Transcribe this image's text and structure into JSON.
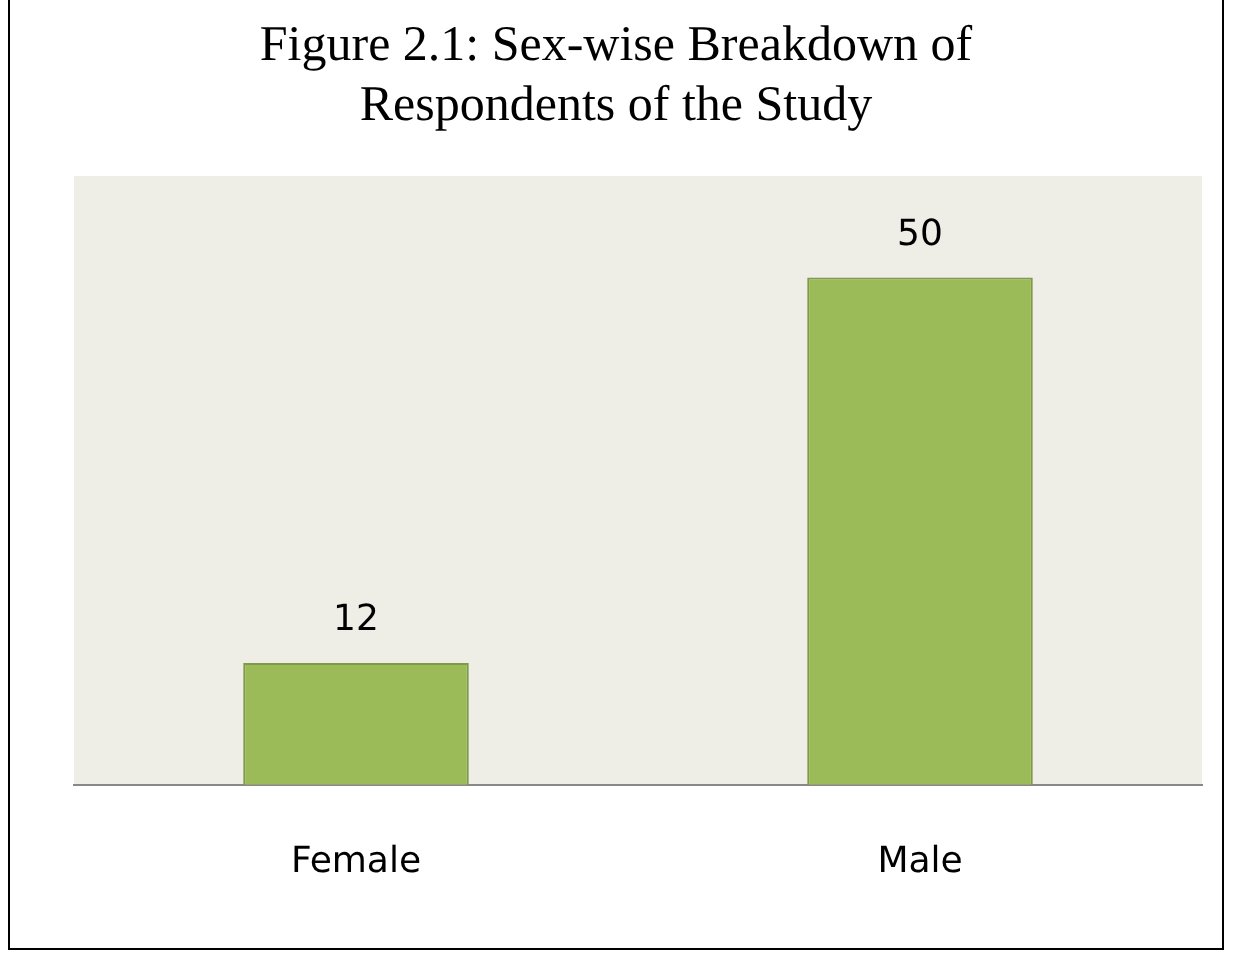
{
  "chart_data": {
    "type": "bar",
    "title": "Figure 2.1: Sex-wise Breakdown of Respondents of the Study",
    "categories": [
      "Female",
      "Male"
    ],
    "values": [
      12,
      50
    ],
    "color": "#9bbb59",
    "data_labels": true,
    "grid": false,
    "legend": false,
    "tick_labels": "x"
  }
}
